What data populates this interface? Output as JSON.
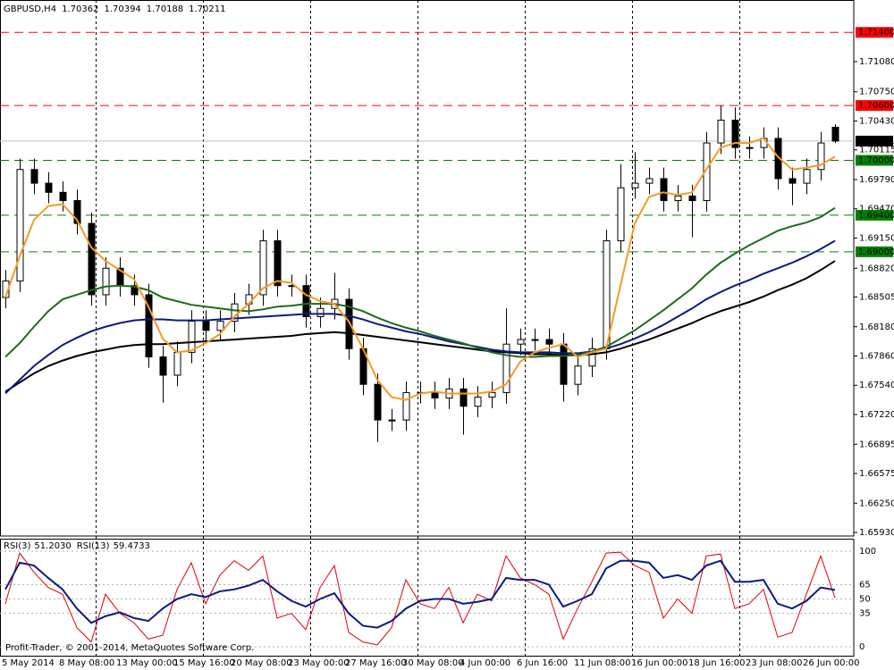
{
  "chart_data": [
    {
      "type": "candlestick",
      "title": "GBPUSD,H4",
      "categories": [
        "5 May 2014",
        null,
        null,
        null,
        "8 May 08:00",
        null,
        null,
        null,
        "13 May 00:00",
        null,
        null,
        null,
        "15 May 16:00",
        null,
        null,
        null,
        "20 May 08:00",
        null,
        null,
        null,
        "23 May 00:00",
        null,
        null,
        null,
        "27 May 16:00",
        null,
        null,
        null,
        "30 May 08:00",
        null,
        null,
        null,
        "4 Jun 00:00",
        null,
        null,
        null,
        "6 Jun 16:00",
        null,
        null,
        null,
        "11 Jun 08:00",
        null,
        null,
        null,
        "16 Jun 00:00",
        null,
        null,
        null,
        "18 Jun 16:00",
        null,
        null,
        null,
        "23 Jun 08:00",
        null,
        null,
        null,
        "26 Jun 00:00",
        null,
        null
      ],
      "open": [
        1.685,
        1.6868,
        1.699,
        1.6975,
        1.6965,
        1.6956,
        1.6931,
        1.6853,
        1.6882,
        1.6863,
        1.6853,
        1.6785,
        1.6765,
        1.679,
        1.6824,
        1.6814,
        1.6824,
        1.6843,
        1.6853,
        1.6912,
        1.6863,
        1.6863,
        1.6829,
        1.6838,
        1.6848,
        1.6794,
        1.6755,
        1.6716,
        1.6716,
        1.6746,
        1.6746,
        1.674,
        1.675,
        1.6731,
        1.6741,
        1.6746,
        1.6799,
        1.6804,
        1.6804,
        1.6799,
        1.6755,
        1.6775,
        1.6794,
        1.6912,
        1.697,
        1.6975,
        1.698,
        1.6956,
        1.6961,
        1.6956,
        1.7019,
        1.7044,
        1.7014,
        1.7014,
        1.7024,
        1.698,
        1.6975,
        1.699,
        1.70362
      ],
      "high": [
        1.688,
        1.7002,
        1.7002,
        1.6987,
        1.6977,
        1.6968,
        1.6943,
        1.6894,
        1.6894,
        1.6875,
        1.6865,
        1.6797,
        1.6802,
        1.6836,
        1.6836,
        1.6836,
        1.6855,
        1.6865,
        1.6924,
        1.6924,
        1.6875,
        1.6875,
        1.685,
        1.6877,
        1.686,
        1.6806,
        1.6767,
        1.6728,
        1.6758,
        1.6758,
        1.6758,
        1.6762,
        1.6762,
        1.6753,
        1.6758,
        1.6838,
        1.6816,
        1.6816,
        1.6816,
        1.6811,
        1.6787,
        1.6806,
        1.6924,
        1.6996,
        1.7009,
        1.6992,
        1.6992,
        1.6973,
        1.6973,
        1.7031,
        1.706,
        1.7058,
        1.7026,
        1.7036,
        1.7036,
        1.6992,
        1.7002,
        1.7031,
        1.70394
      ],
      "low": [
        1.6838,
        1.6856,
        1.6963,
        1.6953,
        1.6944,
        1.6919,
        1.6841,
        1.6841,
        1.6851,
        1.6841,
        1.6773,
        1.6735,
        1.6753,
        1.6778,
        1.6802,
        1.6802,
        1.6812,
        1.6831,
        1.6841,
        1.6851,
        1.6851,
        1.6817,
        1.6817,
        1.6826,
        1.6782,
        1.6743,
        1.6692,
        1.6704,
        1.6704,
        1.6734,
        1.6728,
        1.6728,
        1.67,
        1.6719,
        1.6729,
        1.6734,
        1.6787,
        1.6792,
        1.6787,
        1.6736,
        1.6743,
        1.6763,
        1.6782,
        1.69,
        1.6958,
        1.6963,
        1.6944,
        1.6944,
        1.6916,
        1.6944,
        1.7007,
        1.7002,
        1.7002,
        1.7002,
        1.6968,
        1.6951,
        1.6963,
        1.6978,
        1.70188
      ],
      "close": [
        1.6868,
        1.699,
        1.6975,
        1.6965,
        1.6956,
        1.6931,
        1.6853,
        1.6882,
        1.6863,
        1.6853,
        1.6785,
        1.6765,
        1.679,
        1.6824,
        1.6814,
        1.6824,
        1.6843,
        1.6853,
        1.6912,
        1.6863,
        1.6863,
        1.6829,
        1.6838,
        1.6848,
        1.6794,
        1.6755,
        1.6716,
        1.6716,
        1.6746,
        1.6746,
        1.674,
        1.675,
        1.6731,
        1.6741,
        1.6746,
        1.6799,
        1.6804,
        1.6804,
        1.6799,
        1.6755,
        1.6775,
        1.6794,
        1.6912,
        1.697,
        1.6975,
        1.698,
        1.6956,
        1.6961,
        1.6956,
        1.7019,
        1.7044,
        1.7014,
        1.7014,
        1.7024,
        1.698,
        1.6975,
        1.699,
        1.7019,
        1.70211
      ],
      "series": [
        {
          "color": "#000000",
          "values": [
            1.6747,
            1.6757,
            1.6767,
            1.6775,
            1.6781,
            1.6786,
            1.679,
            1.6793,
            1.6796,
            1.6798,
            1.6799,
            1.6799,
            1.68,
            1.6801,
            1.6802,
            1.6803,
            1.6804,
            1.6805,
            1.6806,
            1.6807,
            1.6808,
            1.681,
            1.6811,
            1.6812,
            1.6811,
            1.6809,
            1.6807,
            1.6805,
            1.6803,
            1.6801,
            1.6799,
            1.6797,
            1.6795,
            1.6793,
            1.6791,
            1.679,
            1.6789,
            1.6788,
            1.6788,
            1.6787,
            1.6787,
            1.6788,
            1.679,
            1.6794,
            1.6799,
            1.6804,
            1.681,
            1.6816,
            1.6822,
            1.6829,
            1.6835,
            1.684,
            1.6845,
            1.6851,
            1.6858,
            1.6864,
            1.6871,
            1.688,
            1.689
          ]
        },
        {
          "color": "#0b1b80",
          "values": [
            1.6745,
            1.676,
            1.6775,
            1.6787,
            1.6798,
            1.6806,
            1.6813,
            1.6818,
            1.6822,
            1.6825,
            1.6826,
            1.6826,
            1.6825,
            1.6825,
            1.6825,
            1.6826,
            1.6827,
            1.6828,
            1.6829,
            1.683,
            1.6831,
            1.6832,
            1.6832,
            1.6832,
            1.683,
            1.6826,
            1.6821,
            1.6817,
            1.6813,
            1.681,
            1.6806,
            1.6802,
            1.6799,
            1.6796,
            1.6793,
            1.6791,
            1.679,
            1.679,
            1.679,
            1.6789,
            1.6789,
            1.6791,
            1.6794,
            1.6799,
            1.6805,
            1.6812,
            1.682,
            1.6829,
            1.6838,
            1.6848,
            1.6856,
            1.6863,
            1.6869,
            1.6876,
            1.6882,
            1.6888,
            1.6895,
            1.6903,
            1.6912
          ]
        },
        {
          "color": "#1e6b1e",
          "values": [
            1.6785,
            1.68,
            1.6818,
            1.6835,
            1.6848,
            1.6853,
            1.6858,
            1.6862,
            1.6863,
            1.6862,
            1.6858,
            1.685,
            1.6846,
            1.6842,
            1.684,
            1.6838,
            1.6836,
            1.6835,
            1.6837,
            1.684,
            1.6841,
            1.6843,
            1.6843,
            1.6843,
            1.684,
            1.6835,
            1.6828,
            1.6822,
            1.6817,
            1.6813,
            1.6808,
            1.6804,
            1.68,
            1.6795,
            1.679,
            1.6787,
            1.6785,
            1.6785,
            1.6786,
            1.6786,
            1.6787,
            1.6791,
            1.6796,
            1.6805,
            1.6814,
            1.6825,
            1.6836,
            1.6848,
            1.686,
            1.6875,
            1.6888,
            1.6898,
            1.6907,
            1.6915,
            1.6923,
            1.6928,
            1.6932,
            1.6938,
            1.6948
          ]
        },
        {
          "color": "#f59a23",
          "values": [
            1.685,
            1.6895,
            1.6935,
            1.695,
            1.6952,
            1.6935,
            1.6905,
            1.689,
            1.688,
            1.687,
            1.684,
            1.6805,
            1.679,
            1.6792,
            1.68,
            1.681,
            1.6829,
            1.6843,
            1.686,
            1.6868,
            1.6866,
            1.6853,
            1.6846,
            1.6843,
            1.6824,
            1.6794,
            1.676,
            1.6741,
            1.6738,
            1.6745,
            1.6747,
            1.6745,
            1.6745,
            1.6745,
            1.6747,
            1.6755,
            1.678,
            1.679,
            1.6795,
            1.6799,
            1.6785,
            1.679,
            1.6794,
            1.6863,
            1.6931,
            1.696,
            1.6965,
            1.6962,
            1.6965,
            1.699,
            1.7014,
            1.7019,
            1.7019,
            1.7024,
            1.7004,
            1.699,
            1.6992,
            1.6995,
            1.7004
          ]
        }
      ],
      "ylim": [
        1.65891,
        1.71754
      ],
      "yticks": [
        {
          "value": 1.7108,
          "label": "1.71080"
        },
        {
          "value": 1.7075,
          "label": "1.70750"
        },
        {
          "value": 1.7043,
          "label": "1.70430"
        },
        1.70115,
        {
          "value": 1.6979,
          "label": "1.69790"
        },
        {
          "value": 1.6947,
          "label": "1.69470"
        },
        {
          "value": 1.6915,
          "label": "1.69150"
        },
        {
          "value": 1.6882,
          "label": "1.68820"
        },
        1.68505,
        {
          "value": 1.6818,
          "label": "1.68180"
        },
        {
          "value": 1.6786,
          "label": "1.67860"
        },
        {
          "value": 1.6754,
          "label": "1.67540"
        },
        {
          "value": 1.6722,
          "label": "1.67220"
        },
        1.66895,
        1.66575,
        {
          "value": 1.6625,
          "label": "1.66250"
        },
        {
          "value": 1.6593,
          "label": "1.65930"
        }
      ],
      "levels": [
        {
          "value": 1.714,
          "label": "1.71400",
          "color": "#ff0000"
        },
        {
          "value": 1.706,
          "label": "1.70600",
          "color": "#ff0000"
        },
        {
          "value": 1.7,
          "label": "1.70000",
          "color": "#008000"
        },
        {
          "value": 1.694,
          "label": "1.69400",
          "color": "#008000"
        },
        {
          "value": 1.69,
          "label": "1.69000",
          "color": "#008000"
        }
      ]
    },
    {
      "type": "line",
      "series": [
        {
          "name": "RSI(3)",
          "color": "#e00000",
          "value_label": "51.2030",
          "values": [
            45,
            98,
            78,
            62,
            55,
            20,
            5,
            55,
            35,
            25,
            8,
            12,
            60,
            88,
            45,
            75,
            90,
            80,
            95,
            30,
            35,
            18,
            62,
            85,
            15,
            5,
            2,
            20,
            70,
            45,
            40,
            62,
            25,
            55,
            48,
            95,
            72,
            65,
            55,
            8,
            40,
            68,
            98,
            99,
            85,
            78,
            30,
            50,
            35,
            95,
            97,
            40,
            45,
            60,
            10,
            15,
            55,
            95,
            51.203
          ]
        },
        {
          "name": "RSI(13)",
          "color": "#0b1b80",
          "values": [
            60,
            88,
            85,
            72,
            60,
            40,
            25,
            32,
            36,
            30,
            27,
            40,
            50,
            55,
            52,
            58,
            60,
            64,
            70,
            58,
            48,
            42,
            50,
            56,
            35,
            22,
            20,
            27,
            40,
            48,
            50,
            50,
            45,
            47,
            50,
            72,
            70,
            70,
            65,
            42,
            48,
            55,
            82,
            90,
            90,
            88,
            72,
            75,
            70,
            85,
            90,
            68,
            68,
            70,
            45,
            40,
            48,
            62,
            59.4733
          ]
        }
      ],
      "ylim": [
        -10.3,
        113.1
      ],
      "yticks": [
        100,
        65,
        50,
        35,
        0
      ],
      "annotation": "Profit-Trader, © 2001-2014, MetaQuotes Software Corp."
    }
  ]
}
